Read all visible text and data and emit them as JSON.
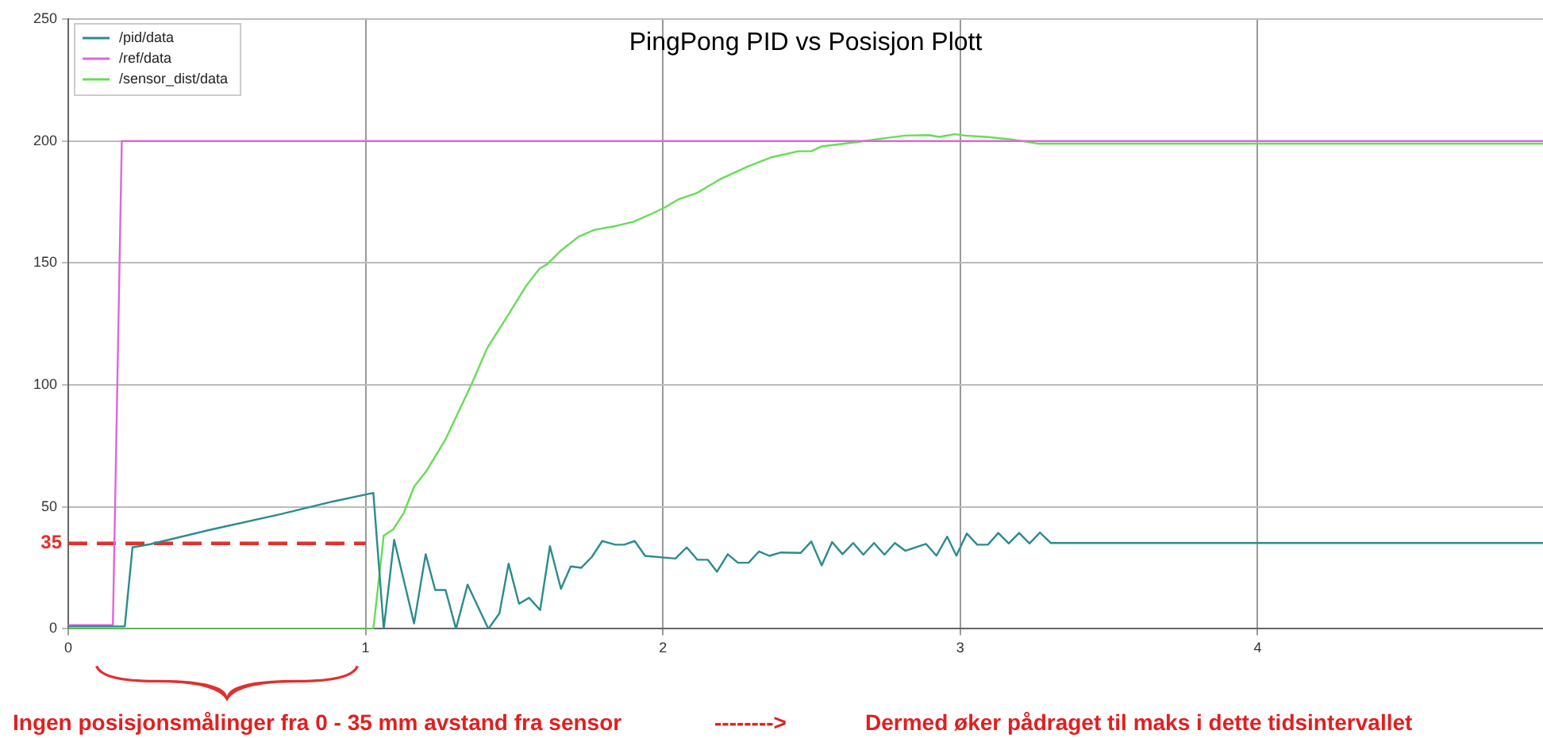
{
  "chart_data": {
    "type": "line",
    "title": "PingPong PID vs Posisjon Plott",
    "xlim": [
      0,
      4.96
    ],
    "xticks": [
      0,
      1,
      2,
      3,
      4
    ],
    "ylim": [
      0,
      250
    ],
    "yticks": [
      0,
      50,
      100,
      150,
      200,
      250
    ],
    "grid": true,
    "legend": "top left",
    "marker": "none",
    "series": [
      {
        "name": "/pid/data",
        "color": "#2a8c8c",
        "x": [
          0,
          0.19,
          0.216,
          0.276,
          0.47,
          0.715,
          0.89,
          1.026,
          1.061,
          1.096,
          1.163,
          1.202,
          1.234,
          1.269,
          1.304,
          1.343,
          1.413,
          1.45,
          1.481,
          1.516,
          1.55,
          1.587,
          1.62,
          1.657,
          1.69,
          1.725,
          1.761,
          1.796,
          1.84,
          1.87,
          1.905,
          1.94,
          2.042,
          2.08,
          2.116,
          2.151,
          2.182,
          2.218,
          2.252,
          2.288,
          2.323,
          2.358,
          2.397,
          2.463,
          2.499,
          2.534,
          2.569,
          2.604,
          2.64,
          2.674,
          2.71,
          2.745,
          2.78,
          2.815,
          2.885,
          2.92,
          2.956,
          2.987,
          3.022,
          3.057,
          3.093,
          3.128,
          3.163,
          3.198,
          3.233,
          3.268,
          3.304,
          4.96
        ],
        "values": [
          1,
          1,
          33.4,
          34.7,
          40.4,
          47,
          52.2,
          55.7,
          0,
          36.5,
          2.2,
          30.6,
          15.9,
          15.9,
          0,
          18.1,
          0,
          6.3,
          26.7,
          10.3,
          12.7,
          7.7,
          33.9,
          16.4,
          25.6,
          25,
          29.5,
          36,
          34.5,
          34.5,
          36,
          29.9,
          28.8,
          33.4,
          28.3,
          28.3,
          23.4,
          30.6,
          27.1,
          27.1,
          31.7,
          29.9,
          31.3,
          31.1,
          35.8,
          26,
          35.6,
          30.6,
          35.2,
          30.4,
          35.2,
          30.4,
          35.2,
          32,
          34.8,
          30,
          37.8,
          30,
          39.1,
          34.5,
          34.5,
          39.3,
          35,
          39.3,
          35,
          39.5,
          35.2,
          35.2
        ]
      },
      {
        "name": "/ref/data",
        "color": "#dd66dd",
        "x": [
          0,
          0.15,
          0.18,
          4.96
        ],
        "values": [
          1.5,
          1.5,
          200,
          200
        ]
      },
      {
        "name": "/sensor_dist/data",
        "color": "#66dd55",
        "x": [
          0,
          1.026,
          1.061,
          1.093,
          1.128,
          1.163,
          1.204,
          1.269,
          1.357,
          1.409,
          1.48,
          1.541,
          1.585,
          1.611,
          1.655,
          1.717,
          1.77,
          1.84,
          1.901,
          1.963,
          2.007,
          2.051,
          2.113,
          2.192,
          2.288,
          2.367,
          2.455,
          2.499,
          2.534,
          2.648,
          2.736,
          2.815,
          2.894,
          2.929,
          2.982,
          3.017,
          3.088,
          3.175,
          3.263,
          4.96
        ],
        "values": [
          0,
          0,
          38.2,
          40.8,
          47.4,
          58.3,
          64.6,
          77.7,
          100.5,
          115.1,
          128.8,
          140.8,
          147.7,
          149.5,
          154.9,
          160.8,
          163.6,
          165.1,
          166.9,
          170.2,
          172.8,
          176,
          178.6,
          184.3,
          189.7,
          193.4,
          195.8,
          195.8,
          197.8,
          199.5,
          201,
          202.2,
          202.4,
          201.7,
          202.8,
          202.2,
          201.7,
          200.6,
          198.9,
          198.9
        ]
      },
      {
        "type": "line",
        "color": "#e03030",
        "line_style": "dashed",
        "x": [
          0,
          1
        ],
        "values": [
          35,
          35
        ]
      }
    ],
    "annotations": [
      {
        "text": "35",
        "x": 0,
        "y": 35
      },
      "Ingen posisjonsmålinger fra 0 - 35 mm avstand fra sensor",
      "-------->",
      "Dermed øker pådraget til maks i dette tidsintervallet"
    ]
  }
}
